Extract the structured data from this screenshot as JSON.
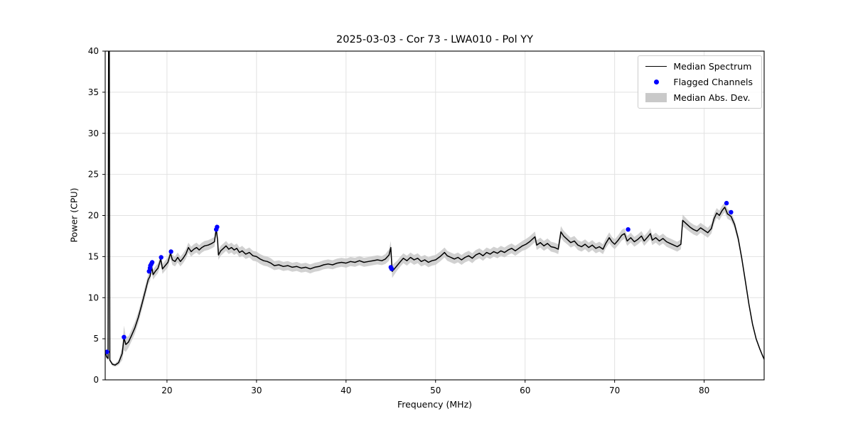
{
  "chart_data": {
    "type": "line",
    "title": "2025-03-03 - Cor 73 - LWA010 - Pol YY",
    "xlabel": "Frequency (MHz)",
    "ylabel": "Power (CPU)",
    "xlim": [
      13.1,
      86.7
    ],
    "ylim": [
      0,
      40
    ],
    "xticks": [
      20,
      30,
      40,
      50,
      60,
      70,
      80
    ],
    "yticks": [
      0,
      5,
      10,
      15,
      20,
      25,
      30,
      35,
      40
    ],
    "grid": true,
    "legend": {
      "position": "upper right",
      "entries": [
        {
          "label": "Median Spectrum",
          "marker": "line",
          "color": "#000000"
        },
        {
          "label": "Flagged Channels",
          "marker": "dot",
          "color": "#0000ff"
        },
        {
          "label": "Median Abs. Dev.",
          "marker": "patch",
          "color": "#c9c9c9"
        }
      ]
    },
    "series": [
      {
        "name": "Median Spectrum",
        "type": "line",
        "color": "#000000",
        "points_format": [
          "freq_MHz",
          "power_CPU",
          "median_abs_dev"
        ],
        "points": [
          [
            13.15,
            3.3,
            0.2
          ],
          [
            13.25,
            2.8,
            0.2
          ],
          [
            13.42,
            2.6,
            0.2
          ],
          [
            13.48,
            42,
            0.2
          ],
          [
            13.55,
            42,
            0.2
          ],
          [
            13.62,
            2.4,
            0.2
          ],
          [
            13.9,
            1.9,
            0.2
          ],
          [
            14.2,
            1.8,
            0.2
          ],
          [
            14.6,
            2.1,
            0.3
          ],
          [
            15.0,
            3.2,
            0.8
          ],
          [
            15.2,
            5.1,
            1.5
          ],
          [
            15.4,
            4.3,
            0.9
          ],
          [
            15.7,
            4.6,
            0.7
          ],
          [
            16.0,
            5.3,
            0.7
          ],
          [
            16.4,
            6.3,
            0.7
          ],
          [
            16.8,
            7.6,
            0.7
          ],
          [
            17.2,
            9.2,
            0.7
          ],
          [
            17.6,
            10.9,
            0.7
          ],
          [
            17.9,
            12.2,
            0.6
          ],
          [
            18.1,
            12.6,
            0.6
          ],
          [
            18.3,
            13.7,
            0.6
          ],
          [
            18.45,
            12.8,
            0.6
          ],
          [
            18.7,
            13.2,
            0.6
          ],
          [
            19.0,
            13.6,
            0.6
          ],
          [
            19.3,
            14.7,
            0.6
          ],
          [
            19.5,
            13.5,
            0.6
          ],
          [
            19.8,
            13.9,
            0.6
          ],
          [
            20.1,
            14.3,
            0.6
          ],
          [
            20.4,
            15.4,
            0.6
          ],
          [
            20.6,
            14.6,
            0.6
          ],
          [
            20.9,
            14.4,
            0.6
          ],
          [
            21.2,
            14.9,
            0.6
          ],
          [
            21.5,
            14.4,
            0.6
          ],
          [
            21.8,
            14.8,
            0.6
          ],
          [
            22.1,
            15.3,
            0.6
          ],
          [
            22.4,
            16.1,
            0.6
          ],
          [
            22.7,
            15.6,
            0.6
          ],
          [
            23.0,
            15.9,
            0.6
          ],
          [
            23.3,
            16.1,
            0.6
          ],
          [
            23.6,
            15.8,
            0.6
          ],
          [
            23.9,
            16.1,
            0.6
          ],
          [
            24.2,
            16.3,
            0.6
          ],
          [
            24.6,
            16.4,
            0.6
          ],
          [
            25.0,
            16.6,
            0.6
          ],
          [
            25.3,
            16.8,
            0.6
          ],
          [
            25.5,
            18.4,
            0.7
          ],
          [
            25.65,
            17.0,
            0.6
          ],
          [
            25.75,
            15.2,
            0.6
          ],
          [
            26.0,
            15.7,
            0.6
          ],
          [
            26.3,
            16.0,
            0.6
          ],
          [
            26.6,
            16.3,
            0.6
          ],
          [
            26.9,
            15.9,
            0.6
          ],
          [
            27.2,
            16.1,
            0.6
          ],
          [
            27.5,
            15.8,
            0.6
          ],
          [
            27.8,
            16.0,
            0.6
          ],
          [
            28.1,
            15.5,
            0.6
          ],
          [
            28.4,
            15.7,
            0.6
          ],
          [
            28.8,
            15.3,
            0.6
          ],
          [
            29.2,
            15.5,
            0.6
          ],
          [
            29.6,
            15.1,
            0.6
          ],
          [
            30.0,
            15.0,
            0.6
          ],
          [
            30.4,
            14.7,
            0.6
          ],
          [
            30.8,
            14.5,
            0.6
          ],
          [
            31.2,
            14.4,
            0.6
          ],
          [
            31.6,
            14.2,
            0.6
          ],
          [
            32.0,
            13.9,
            0.55
          ],
          [
            32.5,
            14.0,
            0.55
          ],
          [
            33.0,
            13.8,
            0.55
          ],
          [
            33.5,
            13.9,
            0.55
          ],
          [
            34.0,
            13.7,
            0.55
          ],
          [
            34.5,
            13.8,
            0.55
          ],
          [
            35.0,
            13.6,
            0.55
          ],
          [
            35.5,
            13.7,
            0.55
          ],
          [
            36.0,
            13.5,
            0.55
          ],
          [
            36.5,
            13.7,
            0.55
          ],
          [
            37.0,
            13.8,
            0.55
          ],
          [
            37.5,
            14.0,
            0.55
          ],
          [
            38.0,
            14.1,
            0.55
          ],
          [
            38.5,
            14.0,
            0.55
          ],
          [
            39.0,
            14.2,
            0.55
          ],
          [
            39.5,
            14.3,
            0.55
          ],
          [
            40.0,
            14.2,
            0.55
          ],
          [
            40.5,
            14.4,
            0.55
          ],
          [
            41.0,
            14.3,
            0.55
          ],
          [
            41.5,
            14.5,
            0.55
          ],
          [
            42.0,
            14.3,
            0.55
          ],
          [
            42.5,
            14.4,
            0.55
          ],
          [
            43.0,
            14.5,
            0.55
          ],
          [
            43.5,
            14.6,
            0.55
          ],
          [
            44.0,
            14.5,
            0.55
          ],
          [
            44.4,
            14.7,
            0.6
          ],
          [
            44.8,
            15.2,
            0.7
          ],
          [
            45.0,
            16.1,
            0.8
          ],
          [
            45.15,
            13.2,
            0.8
          ],
          [
            45.4,
            13.5,
            0.7
          ],
          [
            45.7,
            13.9,
            0.6
          ],
          [
            46.0,
            14.3,
            0.6
          ],
          [
            46.4,
            14.8,
            0.6
          ],
          [
            46.8,
            14.5,
            0.6
          ],
          [
            47.2,
            14.9,
            0.6
          ],
          [
            47.6,
            14.6,
            0.6
          ],
          [
            48.0,
            14.8,
            0.6
          ],
          [
            48.4,
            14.4,
            0.6
          ],
          [
            48.8,
            14.6,
            0.6
          ],
          [
            49.2,
            14.3,
            0.6
          ],
          [
            49.6,
            14.5,
            0.6
          ],
          [
            50.0,
            14.6,
            0.6
          ],
          [
            50.5,
            15.0,
            0.6
          ],
          [
            51.0,
            15.5,
            0.6
          ],
          [
            51.3,
            15.1,
            0.6
          ],
          [
            51.7,
            14.9,
            0.6
          ],
          [
            52.1,
            14.7,
            0.6
          ],
          [
            52.5,
            14.9,
            0.6
          ],
          [
            52.9,
            14.6,
            0.6
          ],
          [
            53.3,
            14.9,
            0.6
          ],
          [
            53.7,
            15.1,
            0.6
          ],
          [
            54.1,
            14.8,
            0.6
          ],
          [
            54.5,
            15.2,
            0.6
          ],
          [
            54.9,
            15.4,
            0.6
          ],
          [
            55.3,
            15.1,
            0.6
          ],
          [
            55.7,
            15.5,
            0.6
          ],
          [
            56.1,
            15.3,
            0.6
          ],
          [
            56.5,
            15.6,
            0.6
          ],
          [
            56.9,
            15.4,
            0.6
          ],
          [
            57.3,
            15.7,
            0.6
          ],
          [
            57.7,
            15.5,
            0.6
          ],
          [
            58.1,
            15.8,
            0.6
          ],
          [
            58.5,
            16.0,
            0.6
          ],
          [
            58.9,
            15.7,
            0.6
          ],
          [
            59.3,
            16.0,
            0.6
          ],
          [
            59.7,
            16.3,
            0.6
          ],
          [
            60.1,
            16.5,
            0.65
          ],
          [
            60.5,
            16.8,
            0.65
          ],
          [
            60.9,
            17.2,
            0.65
          ],
          [
            61.1,
            17.4,
            0.65
          ],
          [
            61.3,
            16.4,
            0.6
          ],
          [
            61.7,
            16.7,
            0.6
          ],
          [
            62.1,
            16.3,
            0.6
          ],
          [
            62.5,
            16.6,
            0.6
          ],
          [
            62.9,
            16.2,
            0.6
          ],
          [
            63.3,
            16.1,
            0.6
          ],
          [
            63.7,
            15.9,
            0.6
          ],
          [
            64.0,
            18.0,
            0.7
          ],
          [
            64.3,
            17.5,
            0.65
          ],
          [
            64.7,
            17.1,
            0.6
          ],
          [
            65.1,
            16.7,
            0.6
          ],
          [
            65.5,
            16.9,
            0.6
          ],
          [
            65.9,
            16.4,
            0.6
          ],
          [
            66.3,
            16.2,
            0.6
          ],
          [
            66.7,
            16.5,
            0.6
          ],
          [
            67.1,
            16.1,
            0.6
          ],
          [
            67.5,
            16.4,
            0.6
          ],
          [
            67.9,
            16.0,
            0.6
          ],
          [
            68.3,
            16.2,
            0.6
          ],
          [
            68.7,
            15.9,
            0.6
          ],
          [
            69.0,
            16.6,
            0.6
          ],
          [
            69.4,
            17.3,
            0.65
          ],
          [
            69.7,
            16.8,
            0.6
          ],
          [
            70.0,
            16.5,
            0.6
          ],
          [
            70.4,
            17.0,
            0.6
          ],
          [
            70.8,
            17.6,
            0.65
          ],
          [
            71.1,
            17.8,
            0.65
          ],
          [
            71.4,
            16.9,
            0.6
          ],
          [
            71.8,
            17.3,
            0.6
          ],
          [
            72.2,
            16.8,
            0.6
          ],
          [
            72.6,
            17.1,
            0.6
          ],
          [
            73.0,
            17.5,
            0.6
          ],
          [
            73.3,
            16.9,
            0.6
          ],
          [
            73.7,
            17.4,
            0.6
          ],
          [
            74.0,
            17.8,
            0.65
          ],
          [
            74.2,
            17.0,
            0.6
          ],
          [
            74.6,
            17.3,
            0.6
          ],
          [
            75.0,
            16.9,
            0.6
          ],
          [
            75.4,
            17.2,
            0.6
          ],
          [
            75.8,
            16.8,
            0.6
          ],
          [
            76.2,
            16.6,
            0.6
          ],
          [
            76.6,
            16.4,
            0.6
          ],
          [
            77.0,
            16.2,
            0.6
          ],
          [
            77.4,
            16.5,
            0.6
          ],
          [
            77.6,
            19.4,
            0.7
          ],
          [
            78.0,
            19.0,
            0.65
          ],
          [
            78.4,
            18.6,
            0.6
          ],
          [
            78.8,
            18.3,
            0.6
          ],
          [
            79.2,
            18.1,
            0.6
          ],
          [
            79.6,
            18.5,
            0.6
          ],
          [
            80.0,
            18.2,
            0.6
          ],
          [
            80.4,
            17.9,
            0.6
          ],
          [
            80.8,
            18.4,
            0.6
          ],
          [
            81.1,
            19.6,
            0.6
          ],
          [
            81.4,
            20.3,
            0.6
          ],
          [
            81.7,
            20.0,
            0.6
          ],
          [
            82.0,
            20.6,
            0.6
          ],
          [
            82.3,
            21.0,
            0.6
          ],
          [
            82.6,
            20.2,
            0.6
          ],
          [
            83.0,
            19.9,
            0.55
          ],
          [
            83.4,
            18.9,
            0.5
          ],
          [
            83.8,
            17.2,
            0.45
          ],
          [
            84.2,
            14.8,
            0.4
          ],
          [
            84.6,
            12.0,
            0.35
          ],
          [
            85.0,
            9.2,
            0.3
          ],
          [
            85.4,
            6.8,
            0.25
          ],
          [
            85.8,
            5.0,
            0.2
          ],
          [
            86.2,
            3.8,
            0.2
          ],
          [
            86.5,
            3.0,
            0.15
          ],
          [
            86.7,
            2.5,
            0.15
          ]
        ]
      },
      {
        "name": "Flagged Channels",
        "type": "scatter",
        "color": "#0000ff",
        "points": [
          [
            13.3,
            3.4
          ],
          [
            15.2,
            5.2
          ],
          [
            18.0,
            13.2
          ],
          [
            18.1,
            13.6
          ],
          [
            18.15,
            13.9
          ],
          [
            18.25,
            14.1
          ],
          [
            18.35,
            14.3
          ],
          [
            19.35,
            14.9
          ],
          [
            20.45,
            15.6
          ],
          [
            25.5,
            18.3
          ],
          [
            25.6,
            18.6
          ],
          [
            45.0,
            13.7
          ],
          [
            45.1,
            13.5
          ],
          [
            71.5,
            18.3
          ],
          [
            82.5,
            21.5
          ],
          [
            83.0,
            20.4
          ]
        ]
      },
      {
        "name": "Median Abs. Dev.",
        "type": "band",
        "color": "#c9c9c9"
      }
    ]
  }
}
